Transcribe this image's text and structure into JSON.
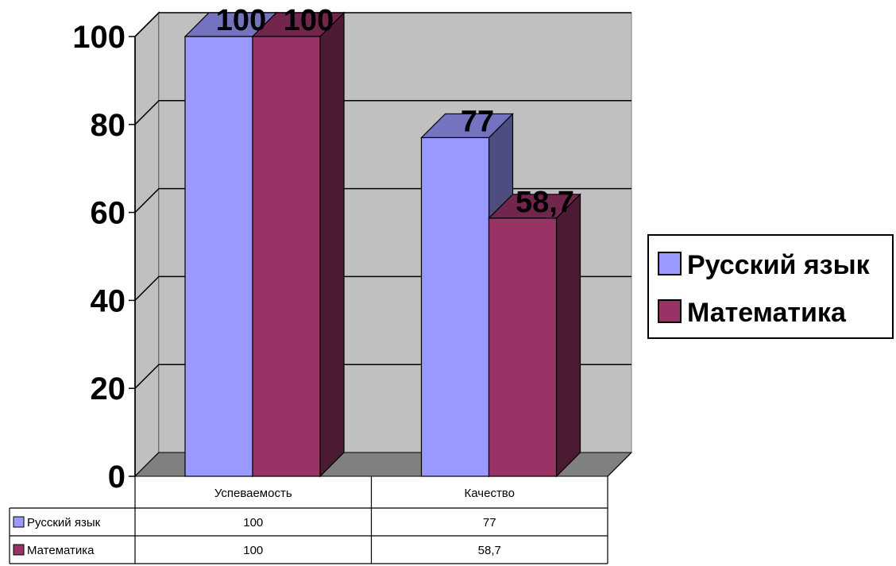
{
  "chart_data": {
    "type": "bar",
    "categories": [
      "Успеваемость",
      "Качество"
    ],
    "series": [
      {
        "name": "Русский язык",
        "values": [
          100,
          77
        ],
        "color": "#9999ff",
        "side_color": "#4d4d80",
        "top_color": "#7373bf"
      },
      {
        "name": "Математика",
        "values": [
          100,
          58.7
        ],
        "color": "#993366",
        "side_color": "#4d1a33",
        "top_color": "#73264d"
      }
    ],
    "data_labels": [
      [
        "100",
        "77"
      ],
      [
        "100",
        "58,7"
      ]
    ],
    "y_ticks": [
      "0",
      "20",
      "40",
      "60",
      "80",
      "100"
    ],
    "ylim": [
      0,
      100
    ],
    "grid": true,
    "legend_position": "right",
    "data_table": {
      "columns": [
        "Успеваемость",
        "Качество"
      ],
      "rows": [
        {
          "label": "Русский язык",
          "cells": [
            "100",
            "77"
          ]
        },
        {
          "label": "Математика",
          "cells": [
            "100",
            "58,7"
          ]
        }
      ]
    },
    "wall_color": "#c0c0c0",
    "floor_color": "#808080"
  }
}
